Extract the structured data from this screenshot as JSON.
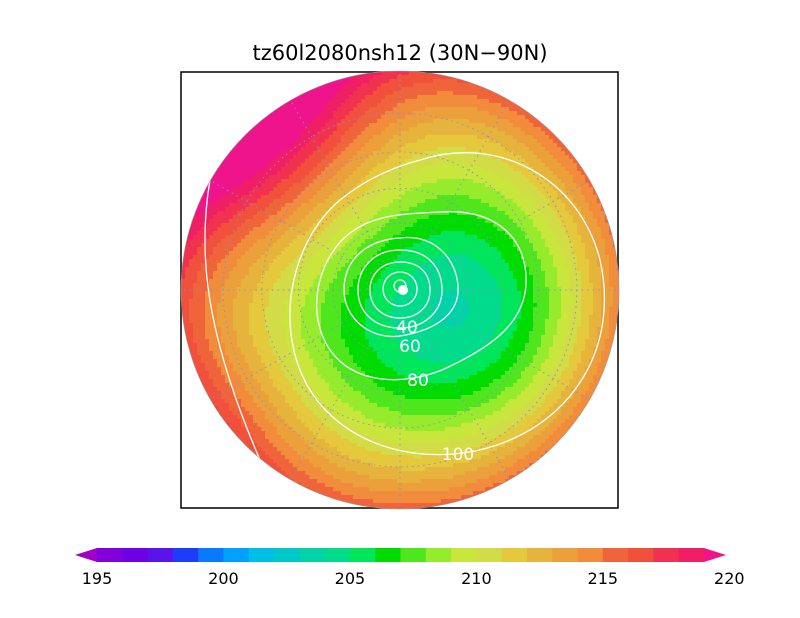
{
  "chart_data": {
    "type": "heatmap",
    "projection": "north-polar-stereographic",
    "title": "tz60l2080nsh12 (30N−90N)",
    "domain": {
      "lat_range": [
        30,
        90
      ]
    },
    "colorbar": {
      "min": 195,
      "max": 220,
      "step": 1,
      "labels": [
        "195",
        "200",
        "205",
        "210",
        "215",
        "220"
      ],
      "colors": [
        "#a000c8",
        "#8200dc",
        "#6e00e6",
        "#5a14eb",
        "#1e3cff",
        "#0a78ff",
        "#00a0ff",
        "#00bee6",
        "#00c8c8",
        "#00d2aa",
        "#00dc8c",
        "#00e65a",
        "#00dc00",
        "#50e61e",
        "#96eb2d",
        "#c8e63c",
        "#d2dc46",
        "#e6c83c",
        "#e6b43c",
        "#eba03c",
        "#f08c3c",
        "#f0643c",
        "#f0503c",
        "#f03250",
        "#f01e64",
        "#f0148c"
      ],
      "extend": "both"
    },
    "contours": {
      "color": "#ffffff",
      "printed_labels": [
        "40",
        "60",
        "80",
        "100"
      ]
    },
    "grid": true
  }
}
